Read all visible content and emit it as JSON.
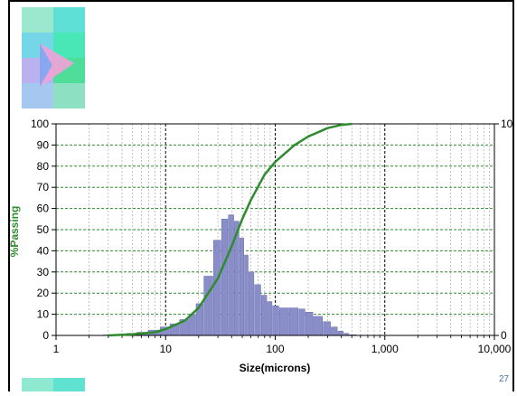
{
  "slide": {
    "page_number": "27"
  },
  "logo": {
    "name": "triangle-logo"
  },
  "colors": {
    "curve": "#2e8b2e",
    "bars": "#8a8ec8",
    "bar_edge": "#6a6eb0",
    "grid_major": "#000000",
    "grid_minor": "#9a9a9a",
    "grid_horizontal": "#2e8b2e",
    "ylabel": "#2e8b2e"
  },
  "chart_data": {
    "type": "line",
    "xlabel": "Size(microns)",
    "ylabel": "%Passing",
    "x_scale": "log",
    "xlim": [
      1,
      10000
    ],
    "ylim": [
      0,
      100
    ],
    "x_ticks": [
      1,
      10,
      100,
      1000,
      10000
    ],
    "x_tick_labels": [
      "1",
      "10",
      "100",
      "1,000",
      "10,000"
    ],
    "y_ticks": [
      0,
      10,
      20,
      30,
      40,
      50,
      60,
      70,
      80,
      90,
      100
    ],
    "y_tick_labels": [
      "0",
      "10",
      "20",
      "30",
      "40",
      "50",
      "60",
      "70",
      "80",
      "90",
      "100"
    ],
    "y2_tick_labels": [
      "0",
      "10"
    ],
    "grid": true,
    "series": [
      {
        "kind": "line",
        "x": [
          3,
          5,
          8,
          10,
          15,
          20,
          30,
          40,
          50,
          60,
          80,
          100,
          150,
          200,
          300,
          400,
          500
        ],
        "y": [
          0,
          0.5,
          1.5,
          3,
          7,
          13,
          27,
          42,
          55,
          64,
          76,
          82,
          90,
          94,
          98,
          99.5,
          100
        ]
      },
      {
        "kind": "bar",
        "x": [
          3,
          4,
          5,
          6,
          8,
          10,
          12,
          15,
          18,
          20,
          25,
          30,
          35,
          40,
          45,
          50,
          55,
          60,
          70,
          80,
          90,
          100,
          120,
          150,
          180,
          200,
          250,
          300,
          350,
          400,
          450,
          500
        ],
        "y": [
          0.2,
          0.5,
          1,
          1.5,
          2.5,
          4,
          5.5,
          7.5,
          10,
          15,
          28,
          45,
          55,
          57,
          54,
          46,
          38,
          30,
          24,
          19,
          16,
          14,
          13,
          13,
          12.5,
          11,
          9,
          6.5,
          4,
          2,
          1,
          0.3
        ]
      }
    ]
  }
}
